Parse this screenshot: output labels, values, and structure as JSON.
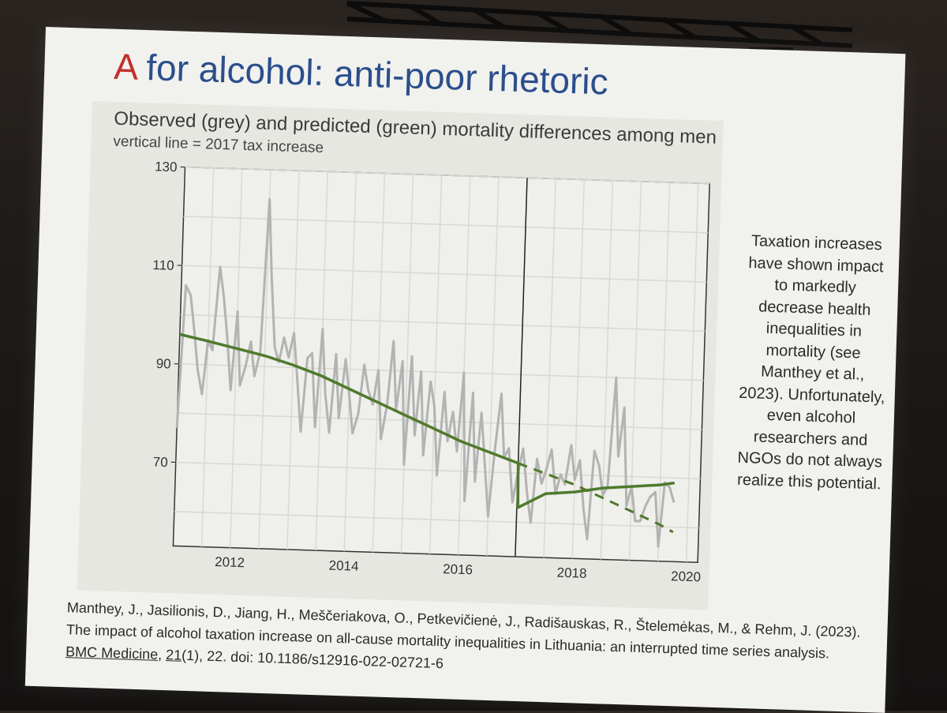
{
  "slide": {
    "title_accent": "A",
    "title_rest": " for alcohol: anti-poor rhetoric",
    "side_text": "Taxation increases have shown impact to markedly decrease health inequalities in mortality (see Manthey et al., 2023). Unfortunately, even alcohol researchers and NGOs do not always realize this potential.",
    "citation": {
      "authors": "Manthey, J., Jasilionis, D., Jiang, H., Meščeriakova, O., Petkevičienė, J., Radišauskas, R., Štelemėkas, M., & Rehm, J. (2023). The impact of alcohol taxation increase on all-cause mortality inequalities in Lithuania: an interrupted time series analysis. ",
      "journal": "BMC Medicine",
      "sep": ", ",
      "volume": "21",
      "rest": "(1), 22.  doi: 10.1186/s12916-022-02721-6"
    }
  },
  "colors": {
    "observed": "#b3b3b3",
    "predicted": "#4f7a2c",
    "title_blue": "#2b4f8c",
    "title_red": "#c0302d"
  },
  "chart_data": {
    "type": "line",
    "title": "Observed (grey) and predicted (green) mortality differences among men",
    "subtitle": "vertical line = 2017 tax increase",
    "xlabel": "",
    "ylabel": "",
    "xlim": [
      2011.0,
      2020.2
    ],
    "ylim": [
      53,
      130
    ],
    "x_ticks": [
      2012,
      2014,
      2016,
      2018,
      2020
    ],
    "y_ticks": [
      70,
      90,
      110,
      130
    ],
    "grid": true,
    "intervention_x": 2017.0,
    "series": [
      {
        "x": [
          2011.0,
          2011.08,
          2011.17,
          2011.25,
          2011.33,
          2011.42,
          2011.5,
          2011.58,
          2011.67,
          2011.75,
          2011.83,
          2011.92,
          2012.0,
          2012.08,
          2012.17,
          2012.25,
          2012.33,
          2012.42,
          2012.5,
          2012.58,
          2012.67,
          2012.75,
          2012.83,
          2012.92,
          2013.0,
          2013.08,
          2013.17,
          2013.25,
          2013.33,
          2013.42,
          2013.5,
          2013.58,
          2013.67,
          2013.75,
          2013.83,
          2013.92,
          2014.0,
          2014.08,
          2014.17,
          2014.25,
          2014.33,
          2014.42,
          2014.5,
          2014.58,
          2014.67,
          2014.75,
          2014.83,
          2014.92,
          2015.0,
          2015.08,
          2015.17,
          2015.25,
          2015.33,
          2015.42,
          2015.5,
          2015.58,
          2015.67,
          2015.75,
          2015.83,
          2015.92,
          2016.0,
          2016.08,
          2016.17,
          2016.25,
          2016.33,
          2016.42,
          2016.5,
          2016.58,
          2016.67,
          2016.75,
          2016.83,
          2016.92,
          2017.0,
          2017.08,
          2017.17,
          2017.25,
          2017.33,
          2017.42,
          2017.5,
          2017.58,
          2017.67,
          2017.75,
          2017.83,
          2017.92,
          2018.0,
          2018.08,
          2018.17,
          2018.25,
          2018.33,
          2018.42,
          2018.5,
          2018.58,
          2018.67,
          2018.75,
          2018.83,
          2018.92,
          2019.0,
          2019.08,
          2019.17,
          2019.25,
          2019.33,
          2019.42,
          2019.5,
          2019.58,
          2019.67,
          2019.75
        ],
        "values": [
          77,
          106,
          104,
          97,
          89,
          84,
          95,
          93,
          110,
          104,
          96,
          85,
          101,
          86,
          90,
          95,
          88,
          93,
          124,
          108,
          94,
          91,
          96,
          92,
          97,
          88,
          77,
          92,
          93,
          78,
          98,
          85,
          77,
          93,
          80,
          92,
          85,
          77,
          81,
          91,
          86,
          83,
          90,
          76,
          83,
          96,
          82,
          92,
          71,
          93,
          77,
          90,
          73,
          88,
          83,
          69,
          86,
          76,
          82,
          74,
          90,
          64,
          86,
          68,
          82,
          71,
          61,
          74,
          86,
          73,
          75,
          64,
          70,
          75,
          66,
          60,
          73,
          68,
          71,
          75,
          66,
          70,
          68,
          76,
          69,
          73,
          63,
          57,
          75,
          72,
          66,
          68,
          90,
          74,
          84,
          64,
          68,
          61,
          61,
          64,
          66,
          67,
          56,
          69,
          68,
          65
        ]
      },
      {
        "x": [
          2011.0,
          2011.5,
          2012.0,
          2012.5,
          2013.0,
          2013.5,
          2014.0,
          2014.5,
          2015.0,
          2015.5,
          2016.0,
          2016.5,
          2017.0,
          2017.02,
          2017.5,
          2018.0,
          2018.5,
          2019.0,
          2019.5,
          2019.75
        ],
        "values": [
          96,
          94.8,
          93.5,
          92.2,
          90.5,
          88.5,
          86,
          83.5,
          81,
          78.5,
          76,
          74,
          72,
          63,
          66,
          66.5,
          67.5,
          68,
          68.5,
          69
        ]
      },
      {
        "x": [
          2017.0,
          2017.5,
          2018.0,
          2018.5,
          2019.0,
          2019.5,
          2019.75
        ],
        "values": [
          72,
          70,
          68,
          65.5,
          63,
          60.5,
          59
        ]
      }
    ]
  }
}
